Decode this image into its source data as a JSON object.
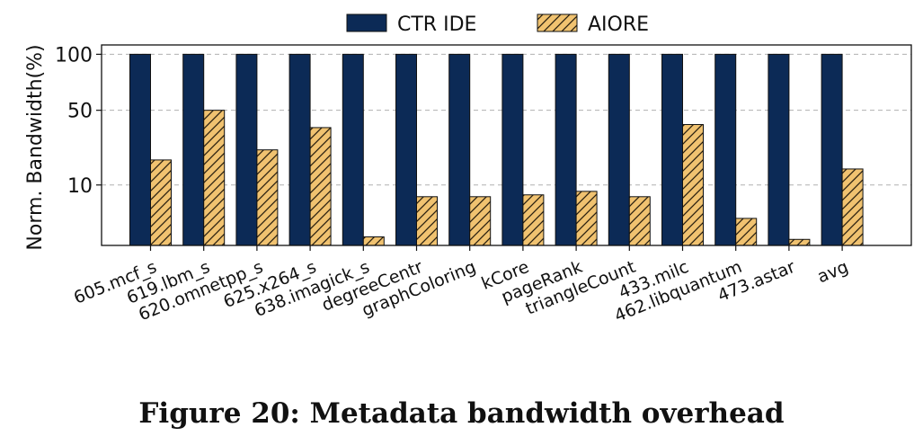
{
  "figure": {
    "caption": "Figure 20: Metadata bandwidth overhead"
  },
  "chart_data": {
    "type": "bar",
    "ylabel": "Norm. Bandwidth(%)",
    "xlabel": "",
    "yscale": "sqrt",
    "ylim": [
      0,
      110
    ],
    "yticks": [
      10,
      50,
      100
    ],
    "grid": true,
    "legend": "top-center",
    "categories": [
      "605.mcf_s",
      "619.lbm_s",
      "620.omnetpp_s",
      "625.x264_s",
      "638.imagick_s",
      "degreeCentr",
      "graphColoring",
      "kCore",
      "pageRank",
      "triangleCount",
      "433.milc",
      "462.libquantum",
      "473.astar",
      "avg"
    ],
    "series": [
      {
        "name": "CTR IDE",
        "color": "#0c2a56",
        "pattern": "solid",
        "values": [
          100,
          100,
          100,
          100,
          100,
          100,
          100,
          100,
          100,
          100,
          100,
          100,
          100,
          100
        ]
      },
      {
        "name": "AIORE",
        "color": "#f0c270",
        "pattern": "hatch",
        "values": [
          20,
          50,
          25,
          38,
          0.2,
          6.5,
          6.5,
          7,
          8,
          6.5,
          40,
          2,
          0.1,
          16
        ]
      }
    ]
  }
}
